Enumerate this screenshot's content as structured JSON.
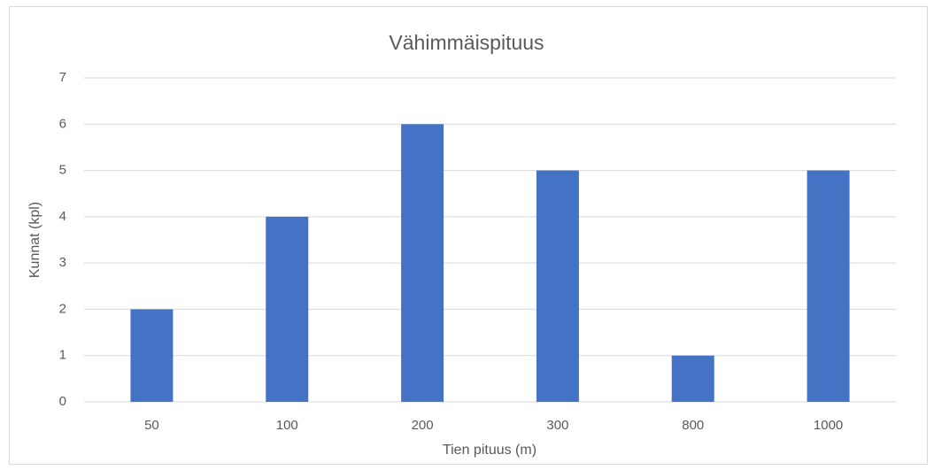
{
  "chart_data": {
    "type": "bar",
    "title": "Vähimmäispituus",
    "x_label": "Tien pituus (m)",
    "y_label": "Kunnat (kpl)",
    "categories": [
      "50",
      "100",
      "200",
      "300",
      "800",
      "1000"
    ],
    "values": [
      2,
      4,
      6,
      5,
      1,
      5
    ],
    "color": "#4472c4",
    "ylim": [
      0,
      7
    ],
    "yticks": [
      0,
      1,
      2,
      3,
      4,
      5,
      6,
      7
    ],
    "grid": true
  }
}
